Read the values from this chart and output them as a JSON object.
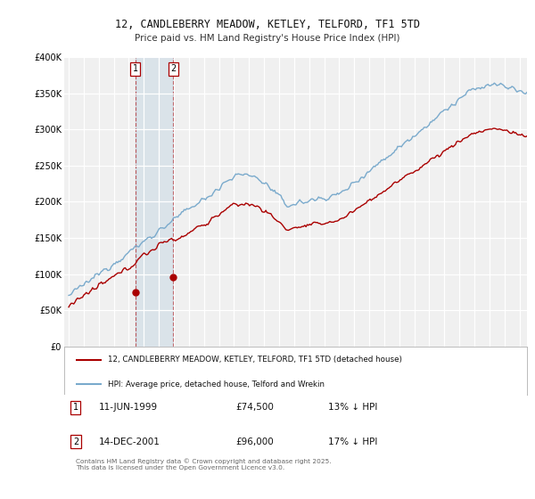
{
  "title": "12, CANDLEBERRY MEADOW, KETLEY, TELFORD, TF1 5TD",
  "subtitle": "Price paid vs. HM Land Registry's House Price Index (HPI)",
  "ylim": [
    0,
    400000
  ],
  "yticks": [
    0,
    50000,
    100000,
    150000,
    200000,
    250000,
    300000,
    350000,
    400000
  ],
  "ytick_labels": [
    "£0",
    "£50K",
    "£100K",
    "£150K",
    "£200K",
    "£250K",
    "£300K",
    "£350K",
    "£400K"
  ],
  "background_color": "#ffffff",
  "plot_bg_color": "#f0f0f0",
  "grid_color": "#ffffff",
  "red_color": "#aa0000",
  "blue_color": "#7aaacc",
  "purchase1_date": "11-JUN-1999",
  "purchase1_price": 74500,
  "purchase1_label": "13% ↓ HPI",
  "purchase2_date": "14-DEC-2001",
  "purchase2_price": 96000,
  "purchase2_label": "17% ↓ HPI",
  "legend_line1": "12, CANDLEBERRY MEADOW, KETLEY, TELFORD, TF1 5TD (detached house)",
  "legend_line2": "HPI: Average price, detached house, Telford and Wrekin",
  "footer": "Contains HM Land Registry data © Crown copyright and database right 2025.\nThis data is licensed under the Open Government Licence v3.0.",
  "purchase1_x": 1999.44,
  "purchase2_x": 2001.95,
  "xmin": 1994.7,
  "xmax": 2025.5
}
